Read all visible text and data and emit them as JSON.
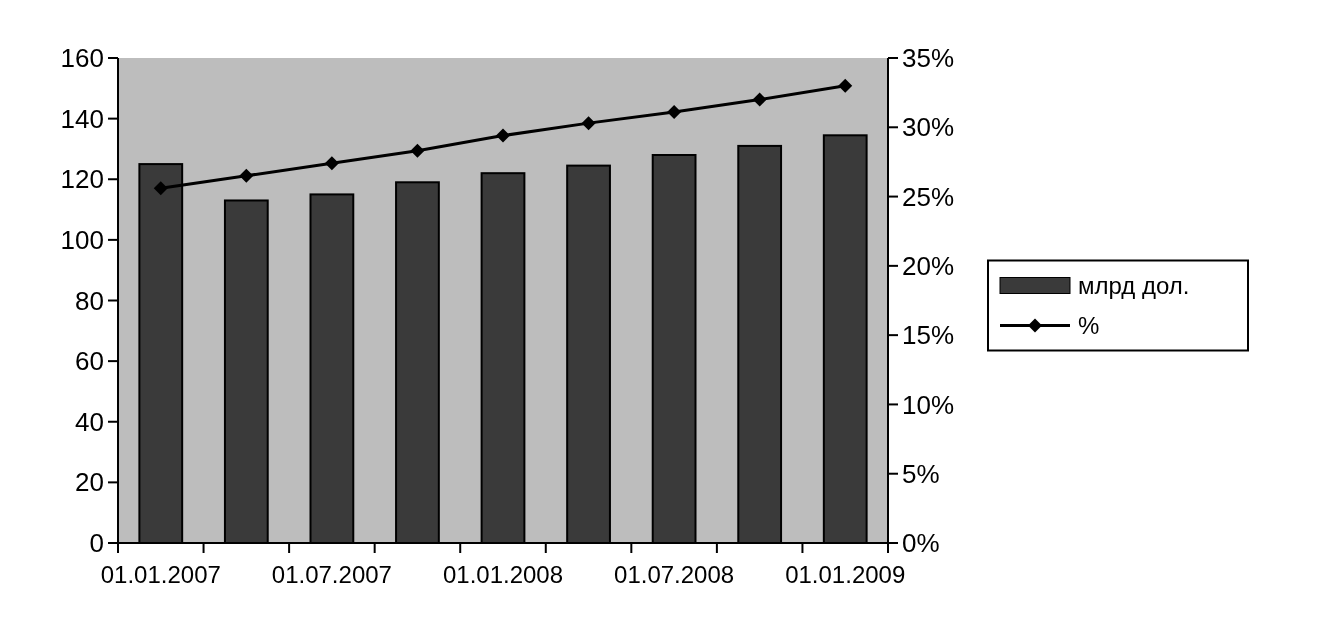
{
  "chart_data": {
    "type": "bar",
    "categories": [
      "01.01.2007",
      null,
      "01.07.2007",
      null,
      "01.01.2008",
      null,
      "01.07.2008",
      null,
      "01.01.2009"
    ],
    "series": [
      {
        "name": "млрд дол.",
        "color": "#3a3a3a",
        "values": [
          125,
          113,
          115,
          119,
          122,
          124.5,
          128,
          131,
          134.5
        ]
      },
      {
        "name": "%",
        "type": "line",
        "axis": "y2",
        "color": "#000000",
        "values": [
          25.6,
          26.5,
          27.4,
          28.3,
          29.4,
          30.3,
          31.1,
          32.0,
          33.0
        ]
      }
    ],
    "ylim": [
      0,
      160
    ],
    "yticks": [
      0,
      20,
      40,
      60,
      80,
      100,
      120,
      140,
      160
    ],
    "y2lim": [
      0,
      35
    ],
    "y2ticks": [
      {
        "value": 0,
        "label": "0%"
      },
      {
        "value": 5,
        "label": "5%"
      },
      {
        "value": 10,
        "label": "10%"
      },
      {
        "value": 15,
        "label": "15%"
      },
      {
        "value": 20,
        "label": "20%"
      },
      {
        "value": 25,
        "label": "25%"
      },
      {
        "value": 30,
        "label": "30%"
      },
      {
        "value": 35,
        "label": "35%"
      }
    ],
    "grid": false,
    "legend": "right",
    "marker": "diamond",
    "line_style": "solid"
  }
}
